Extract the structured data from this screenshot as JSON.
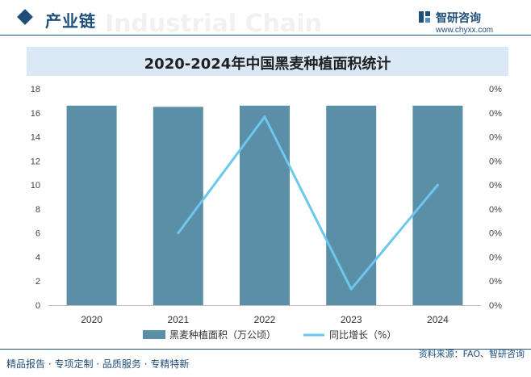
{
  "header": {
    "section_title": "产业链",
    "brand_name": "智研咨询",
    "brand_url": "www.chyxx.com"
  },
  "chart_data": {
    "type": "bar",
    "title": "2020-2024年中国黑麦种植面积统计",
    "categories": [
      "2020",
      "2021",
      "2022",
      "2023",
      "2024"
    ],
    "series": [
      {
        "name": "黑麦种植面积（万公顷）",
        "type": "bar",
        "axis": "left",
        "values": [
          16.6,
          16.5,
          16.6,
          16.6,
          16.6
        ],
        "color": "#5b8fa8"
      },
      {
        "name": "同比增长（%）",
        "type": "line",
        "axis": "right",
        "values": [
          null,
          0.0018,
          0.0047,
          0.0004,
          0.003
        ],
        "color": "#6cc7ef"
      }
    ],
    "y_left": {
      "min": 0,
      "max": 18,
      "ticks": [
        "0",
        "2",
        "4",
        "6",
        "8",
        "10",
        "12",
        "14",
        "16",
        "18"
      ]
    },
    "y_right": {
      "min": 0,
      "max": 0.0054,
      "ticks": [
        "0%",
        "0%",
        "0%",
        "0%",
        "0%",
        "0%",
        "0%",
        "0%",
        "0%",
        "0%"
      ]
    },
    "legend_position": "bottom",
    "grid": false
  },
  "footer": {
    "left_text": "精品报告 · 专项定制 · 品质服务 · 专精特新",
    "source": "资料来源：FAO、智研咨询"
  },
  "colors": {
    "accent": "#1f4e79",
    "title_band": "#dbe9f6"
  }
}
